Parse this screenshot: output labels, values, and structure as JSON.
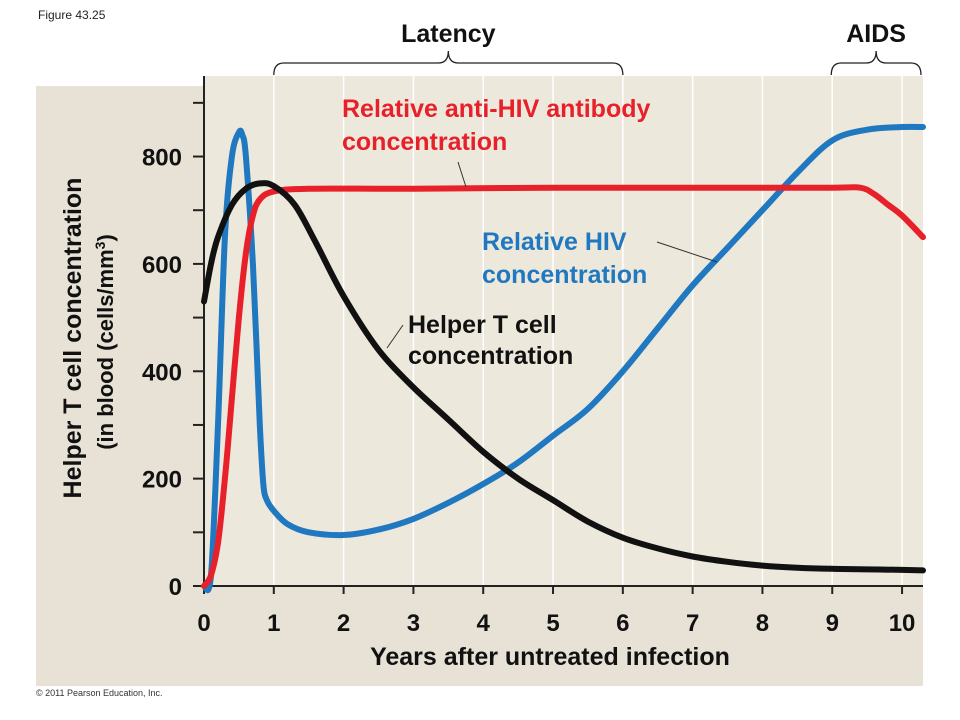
{
  "figure_label": "Figure 43.25",
  "copyright": "© 2011 Pearson Education, Inc.",
  "colors": {
    "panel_background": "#e7e2d5",
    "plot_background": "#ece8dc",
    "helper_t": "#111111",
    "antibody": "#e8202a",
    "hiv": "#1f78c0",
    "antibody_label": "#e8202a",
    "hiv_label": "#1f78c0"
  },
  "chart_data": {
    "type": "line",
    "xlabel": "Years after untreated infection",
    "ylabel_line1": "Helper T cell concentration",
    "ylabel_line2_prefix": "(in blood (cells/mm",
    "ylabel_line2_sup": "3",
    "ylabel_line2_suffix": ")",
    "xlim": [
      0,
      10.3
    ],
    "ylim": [
      0,
      950
    ],
    "x_ticks": [
      0,
      1,
      2,
      3,
      4,
      5,
      6,
      7,
      8,
      9,
      10
    ],
    "y_ticks": [
      0,
      200,
      400,
      600,
      800
    ],
    "periods": [
      {
        "label": "Latency",
        "start": 1,
        "end": 6
      },
      {
        "label": "AIDS",
        "start": 9,
        "end": 10.3
      }
    ],
    "series": [
      {
        "key": "hiv",
        "label_lines": [
          "Relative HIV",
          "concentration"
        ],
        "points": [
          [
            0,
            0
          ],
          [
            0.1,
            20
          ],
          [
            0.2,
            300
          ],
          [
            0.3,
            650
          ],
          [
            0.4,
            800
          ],
          [
            0.5,
            845
          ],
          [
            0.55,
            840
          ],
          [
            0.6,
            800
          ],
          [
            0.7,
            600
          ],
          [
            0.8,
            300
          ],
          [
            0.85,
            190
          ],
          [
            0.9,
            160
          ],
          [
            1.0,
            140
          ],
          [
            1.2,
            115
          ],
          [
            1.5,
            100
          ],
          [
            2.0,
            95
          ],
          [
            2.5,
            105
          ],
          [
            3.0,
            125
          ],
          [
            3.5,
            155
          ],
          [
            4.0,
            190
          ],
          [
            4.5,
            230
          ],
          [
            5.0,
            280
          ],
          [
            5.5,
            330
          ],
          [
            6.0,
            400
          ],
          [
            6.5,
            480
          ],
          [
            7.0,
            560
          ],
          [
            7.5,
            630
          ],
          [
            8.0,
            700
          ],
          [
            8.5,
            770
          ],
          [
            9.0,
            830
          ],
          [
            9.5,
            850
          ],
          [
            10.0,
            855
          ],
          [
            10.3,
            855
          ]
        ]
      },
      {
        "key": "antibody",
        "label_lines": [
          "Relative anti-HIV antibody",
          "concentration"
        ],
        "points": [
          [
            0,
            0
          ],
          [
            0.1,
            20
          ],
          [
            0.2,
            80
          ],
          [
            0.3,
            200
          ],
          [
            0.4,
            350
          ],
          [
            0.5,
            500
          ],
          [
            0.6,
            620
          ],
          [
            0.7,
            690
          ],
          [
            0.8,
            720
          ],
          [
            1.0,
            735
          ],
          [
            1.5,
            740
          ],
          [
            3.0,
            740
          ],
          [
            5.0,
            742
          ],
          [
            7.0,
            742
          ],
          [
            9.0,
            742
          ],
          [
            9.4,
            742
          ],
          [
            9.6,
            730
          ],
          [
            9.8,
            710
          ],
          [
            10.0,
            690
          ],
          [
            10.3,
            650
          ]
        ]
      },
      {
        "key": "helper_t",
        "label_lines": [
          "Helper T cell",
          "concentration"
        ],
        "points": [
          [
            0,
            530
          ],
          [
            0.1,
            600
          ],
          [
            0.2,
            650
          ],
          [
            0.4,
            710
          ],
          [
            0.6,
            740
          ],
          [
            0.8,
            750
          ],
          [
            1.0,
            745
          ],
          [
            1.3,
            710
          ],
          [
            1.6,
            640
          ],
          [
            2.0,
            540
          ],
          [
            2.5,
            440
          ],
          [
            3.0,
            370
          ],
          [
            3.5,
            310
          ],
          [
            4.0,
            250
          ],
          [
            4.5,
            200
          ],
          [
            5.0,
            160
          ],
          [
            5.5,
            120
          ],
          [
            6.0,
            90
          ],
          [
            6.5,
            70
          ],
          [
            7.0,
            55
          ],
          [
            7.5,
            45
          ],
          [
            8.0,
            38
          ],
          [
            8.5,
            34
          ],
          [
            9.0,
            32
          ],
          [
            9.5,
            31
          ],
          [
            10.0,
            30
          ],
          [
            10.3,
            29
          ]
        ]
      }
    ]
  }
}
